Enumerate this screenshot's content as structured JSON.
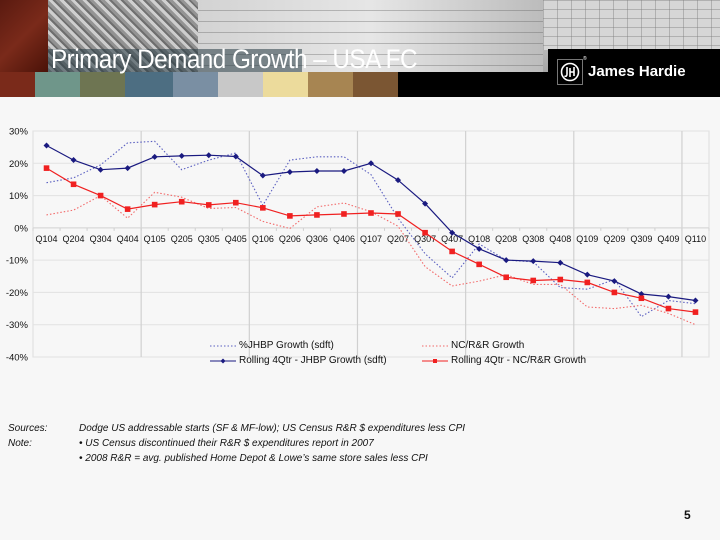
{
  "header": {
    "title": "Primary Demand Growth – USA FC",
    "logo_text": "James Hardie",
    "logo_icon": "jh-monogram-icon",
    "swatch_colors": [
      "#7a2a1a",
      "#6f968a",
      "#6e7552",
      "#4d6e82",
      "#7a8fa3",
      "#c8c8c8",
      "#ecdb9c",
      "#a78552",
      "#7b5633"
    ]
  },
  "chart_data": {
    "type": "line",
    "title": "",
    "xlabel": "",
    "ylabel": "",
    "ylim": [
      -40,
      30
    ],
    "yticks": [
      30,
      20,
      10,
      0,
      -10,
      -20,
      -30,
      -40
    ],
    "ytick_labels": [
      "30%",
      "20%",
      "10%",
      "0%",
      "-10%",
      "-20%",
      "-30%",
      "-40%"
    ],
    "grid": true,
    "legend_position": "bottom",
    "categories": [
      "Q104",
      "Q204",
      "Q304",
      "Q404",
      "Q105",
      "Q205",
      "Q305",
      "Q405",
      "Q106",
      "Q206",
      "Q306",
      "Q406",
      "Q107",
      "Q207",
      "Q307",
      "Q407",
      "Q108",
      "Q208",
      "Q308",
      "Q408",
      "Q109",
      "Q209",
      "Q309",
      "Q409",
      "Q110"
    ],
    "series": [
      {
        "name": "%JHBP Growth (sdft)",
        "style": "dotted",
        "color": "#5a5fc0",
        "values": [
          14,
          15.5,
          19.5,
          26.3,
          26.8,
          18,
          21,
          23.2,
          7,
          21,
          22,
          22,
          16.5,
          3,
          -8,
          -15.5,
          -5,
          -10,
          -10.5,
          -18.5,
          -19,
          -16,
          -27.5,
          -22.5,
          -23.5
        ]
      },
      {
        "name": "NC/R&R Growth",
        "style": "dotted",
        "color": "#f26a6a",
        "values": [
          4,
          5.5,
          10,
          3,
          11,
          9.5,
          6,
          6.3,
          2,
          -0.2,
          6.5,
          7.7,
          5,
          0.5,
          -12,
          -18,
          -16.5,
          -14.5,
          -17.5,
          -17.5,
          -24.5,
          -25,
          -24,
          -26.5,
          -30
        ]
      },
      {
        "name": "Rolling 4Qtr - JHBP Growth (sdft)",
        "style": "solid-diamond",
        "color": "#1a1a80",
        "values": [
          25.5,
          21,
          18,
          18.5,
          22,
          22.3,
          22.5,
          22.1,
          16.2,
          17.3,
          17.6,
          17.6,
          20,
          14.8,
          7.5,
          -1.5,
          -6.5,
          -10,
          -10.3,
          -10.8,
          -14.5,
          -16.5,
          -20.5,
          -21.3,
          -22.5
        ]
      },
      {
        "name": "Rolling 4Qtr - NC/R&R Growth",
        "style": "solid-square",
        "color": "#f02020",
        "values": [
          18.5,
          13.5,
          10,
          5.8,
          7.2,
          8.1,
          7.1,
          7.8,
          6.2,
          3.7,
          4,
          4.3,
          4.6,
          4.3,
          -1.5,
          -7.3,
          -11.3,
          -15.3,
          -16.3,
          -16,
          -16.9,
          -20,
          -21.8,
          -25,
          -26.1
        ]
      }
    ]
  },
  "notes": {
    "sources_label": "Sources:",
    "sources_text": "Dodge US addressable starts (SF & MF-low); US Census R&R $ expenditures less CPI",
    "note_label": "Note:",
    "note_lines": [
      "•  US Census discontinued their R&R $ expenditures report in 2007",
      "• 2008 R&R = avg. published Home Depot & Lowe’s same store sales less CPI"
    ]
  },
  "footer": {
    "page_number": "5"
  }
}
